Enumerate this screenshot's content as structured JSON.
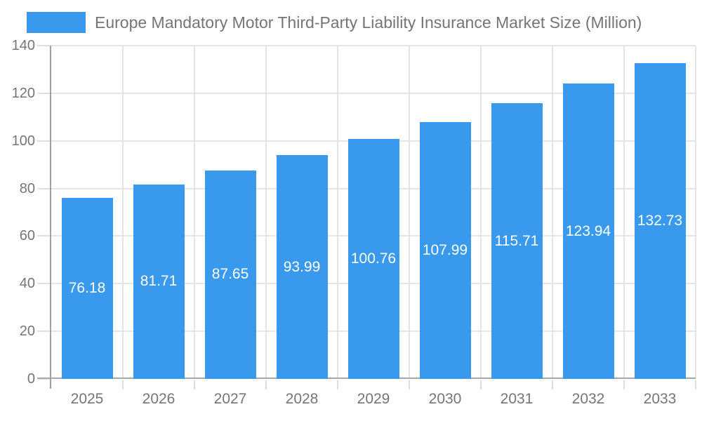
{
  "legend": {
    "label": "Europe Mandatory Motor Third-Party Liability Insurance Market Size (Million)"
  },
  "colors": {
    "bar": "#3999ec",
    "grid": "#e6e6e6",
    "axis": "#a0a0a0",
    "tick": "#e0e0e0",
    "text": "#757575",
    "value_label": "#ffffff",
    "background": "#ffffff"
  },
  "chart_data": {
    "type": "bar",
    "title": "Europe Mandatory Motor Third-Party Liability Insurance Market Size (Million)",
    "categories": [
      "2025",
      "2026",
      "2027",
      "2028",
      "2029",
      "2030",
      "2031",
      "2032",
      "2033"
    ],
    "values": [
      76.18,
      81.71,
      87.65,
      93.99,
      100.76,
      107.99,
      115.71,
      123.94,
      132.73
    ],
    "value_label_format": [
      "76.18",
      "81.71",
      "87.65",
      "93.99",
      "100.76",
      "107.99",
      "115.71",
      "123.94",
      "132.73"
    ],
    "xlabel": "",
    "ylabel": "",
    "ylim": [
      0,
      140
    ],
    "yticks": [
      0,
      20,
      40,
      60,
      80,
      100,
      120,
      140
    ],
    "grid": true,
    "legend_position": "top-left",
    "value_labels": "inside-center-white"
  }
}
